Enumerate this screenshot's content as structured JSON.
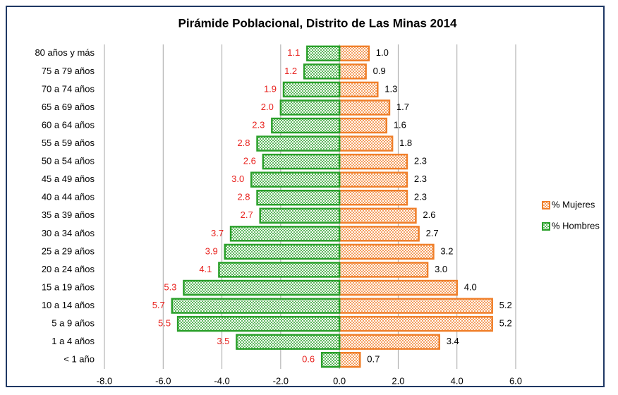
{
  "chart_data": {
    "type": "bar",
    "orientation": "horizontal",
    "title": "Pirámide Poblacional, Distrito de Las Minas 2014",
    "categories": [
      "80 años y más",
      "75 a 79 años",
      "70 a 74 años",
      "65 a 69 años",
      "60 a 64 años",
      "55 a 59 años",
      "50 a 54 años",
      "45 a 49 años",
      "40 a 44 años",
      "35 a 39 años",
      "30 a 34 años",
      "25 a 29 años",
      "20 a 24 años",
      "15 a 19 años",
      "10 a 14 años",
      "5 a 9 años",
      "1 a 4 años",
      "< 1 año"
    ],
    "series": [
      {
        "name": "% Mujeres",
        "color": "#f07f2a",
        "values": [
          1.0,
          0.9,
          1.3,
          1.7,
          1.6,
          1.8,
          2.3,
          2.3,
          2.3,
          2.6,
          2.7,
          3.2,
          3.0,
          4.0,
          5.2,
          5.2,
          3.4,
          0.7
        ],
        "value_labels": [
          "1.0",
          "0.9",
          "1.3",
          "1.7",
          "1.6",
          "1.8",
          "2.3",
          "2.3",
          "2.3",
          "2.6",
          "2.7",
          "3.2",
          "3.0",
          "4.0",
          "5.2",
          "5.2",
          "3.4",
          "0.7"
        ]
      },
      {
        "name": "% Hombres",
        "color": "#2aa02a",
        "values": [
          -1.1,
          -1.2,
          -1.9,
          -2.0,
          -2.3,
          -2.8,
          -2.6,
          -3.0,
          -2.8,
          -2.7,
          -3.7,
          -3.9,
          -4.1,
          -5.3,
          -5.7,
          -5.5,
          -3.5,
          -0.6
        ],
        "value_labels": [
          "1.1",
          "1.2",
          "1.9",
          "2.0",
          "2.3",
          "2.8",
          "2.6",
          "3.0",
          "2.8",
          "2.7",
          "3.7",
          "3.9",
          "4.1",
          "5.3",
          "5.7",
          "5.5",
          "3.5",
          "0.6"
        ]
      }
    ],
    "xlim": [
      -8,
      6
    ],
    "xticks": [
      {
        "value": -8,
        "label": "-8.0"
      },
      {
        "value": -6,
        "label": "-6.0"
      },
      {
        "value": -4,
        "label": "-4.0"
      },
      {
        "value": -2,
        "label": "-2.0"
      },
      {
        "value": 0,
        "label": "0.0"
      },
      {
        "value": 2,
        "label": "2.0"
      },
      {
        "value": 4,
        "label": "4.0"
      },
      {
        "value": 6,
        "label": "6.0"
      }
    ],
    "grid": true,
    "legend": "right"
  }
}
